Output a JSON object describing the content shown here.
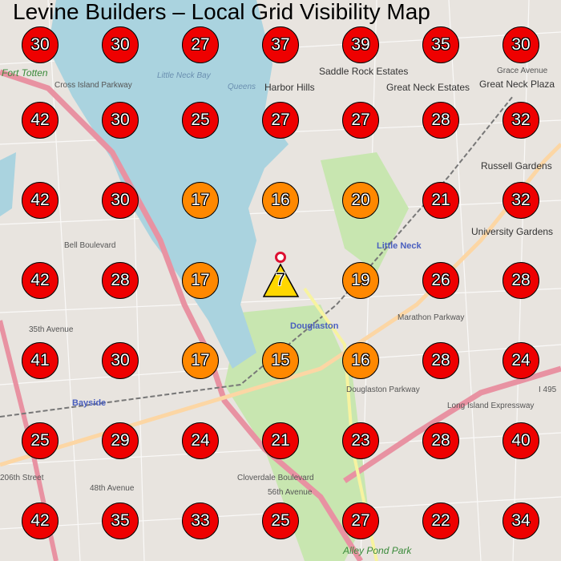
{
  "title": "Levine Builders – Local Grid Visibility Map",
  "colors": {
    "high": "#ee0000",
    "medium": "#ff8800",
    "origin": "#ffd700",
    "water": "#aad3df",
    "land": "#e8e4df",
    "park": "#c8e6b0",
    "motorway": "#e892a2",
    "trunk": "#fcd6a4"
  },
  "origin": {
    "value": "7",
    "icon": "warning-triangle-icon",
    "pin": "location-pin-icon"
  },
  "grid": [
    [
      "30",
      "30",
      "27",
      "37",
      "39",
      "35",
      "30"
    ],
    [
      "42",
      "30",
      "25",
      "27",
      "27",
      "28",
      "32"
    ],
    [
      "42",
      "30",
      "17",
      "16",
      "20",
      "21",
      "32"
    ],
    [
      "42",
      "28",
      "17",
      "",
      "19",
      "26",
      "28"
    ],
    [
      "41",
      "30",
      "17",
      "15",
      "16",
      "28",
      "24"
    ],
    [
      "25",
      "29",
      "24",
      "21",
      "23",
      "28",
      "40"
    ],
    [
      "42",
      "35",
      "33",
      "25",
      "27",
      "22",
      "34"
    ]
  ],
  "map_labels": [
    {
      "text": "Fort Totten",
      "cls": "park"
    },
    {
      "text": "Little Neck Bay",
      "cls": "water"
    },
    {
      "text": "Harbor Hills",
      "cls": "town"
    },
    {
      "text": "Great Neck Estates",
      "cls": "town"
    },
    {
      "text": "Great Neck Plaza",
      "cls": "town"
    },
    {
      "text": "Saddle Rock Estates",
      "cls": "town"
    },
    {
      "text": "Russell Gardens",
      "cls": "town"
    },
    {
      "text": "University Gardens",
      "cls": "town"
    },
    {
      "text": "Queens",
      "cls": "water"
    },
    {
      "text": "Little Neck",
      "cls": "place"
    },
    {
      "text": "Douglaston",
      "cls": "place"
    },
    {
      "text": "Bayside",
      "cls": "place"
    },
    {
      "text": "Alley Pond Park",
      "cls": "park"
    },
    {
      "text": "Cross Island Parkway",
      "cls": ""
    },
    {
      "text": "Bell Boulevard",
      "cls": ""
    },
    {
      "text": "35th Avenue",
      "cls": ""
    },
    {
      "text": "48th Avenue",
      "cls": ""
    },
    {
      "text": "206th Street",
      "cls": ""
    },
    {
      "text": "Cloverdale Boulevard",
      "cls": ""
    },
    {
      "text": "56th Avenue",
      "cls": ""
    },
    {
      "text": "Douglaston Parkway",
      "cls": ""
    },
    {
      "text": "Marathon Parkway",
      "cls": ""
    },
    {
      "text": "Long Island Expressway",
      "cls": ""
    },
    {
      "text": "Grace Avenue",
      "cls": ""
    },
    {
      "text": "I 495",
      "cls": ""
    }
  ]
}
